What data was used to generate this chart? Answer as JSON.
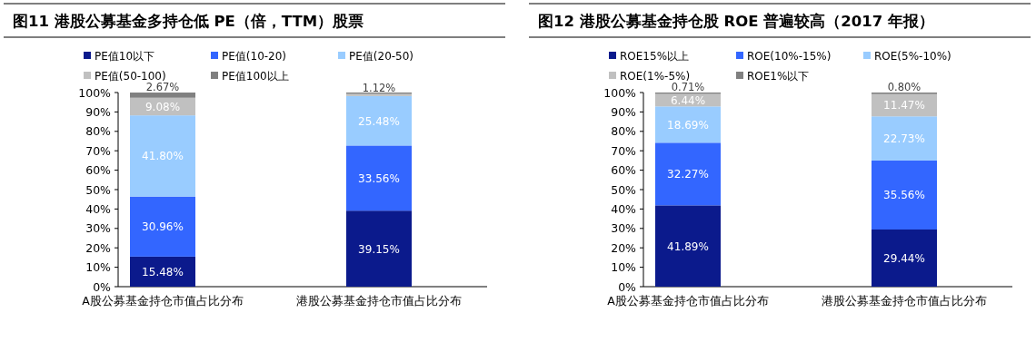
{
  "chart_data": [
    {
      "type": "bar",
      "stacked": true,
      "title": "图11 港股公募基金多持仓低 PE（倍，TTM）股票",
      "categories": [
        "A股公募基金持仓市值占比分布",
        "港股公募基金持仓市值占比分布"
      ],
      "ylim": [
        0,
        100
      ],
      "yticks": [
        {
          "value": 0,
          "label": "0%"
        },
        {
          "value": 10,
          "label": "10%"
        },
        {
          "value": 20,
          "label": "20%"
        },
        {
          "value": 30,
          "label": "30%"
        },
        {
          "value": 40,
          "label": "40%"
        },
        {
          "value": 50,
          "label": "50%"
        },
        {
          "value": 60,
          "label": "60%"
        },
        {
          "value": 70,
          "label": "70%"
        },
        {
          "value": 80,
          "label": "80%"
        },
        {
          "value": 90,
          "label": "90%"
        },
        {
          "value": 100,
          "label": "100%"
        }
      ],
      "legend": "top",
      "series": [
        {
          "name": "PE值10以下",
          "color": "#0b1a8c",
          "values": [
            15.48,
            39.15
          ],
          "value_labels": [
            "15.48%",
            "39.15%"
          ]
        },
        {
          "name": "PE值(10-20)",
          "color": "#3366ff",
          "values": [
            30.96,
            33.56
          ],
          "value_labels": [
            "30.96%",
            "33.56%"
          ]
        },
        {
          "name": "PE值(20-50)",
          "color": "#99ccff",
          "values": [
            41.8,
            25.48
          ],
          "value_labels": [
            "41.80%",
            "25.48%"
          ]
        },
        {
          "name": "PE值(50-100)",
          "color": "#c0c0c0",
          "values": [
            9.08,
            1.12
          ],
          "value_labels": [
            "9.08%",
            "1.12%"
          ]
        },
        {
          "name": "PE值100以上",
          "color": "#808080",
          "values": [
            2.67,
            0.7
          ],
          "value_labels": [
            "2.67%",
            null
          ]
        }
      ]
    },
    {
      "type": "bar",
      "stacked": true,
      "title": "图12 港股公募基金持仓股 ROE 普遍较高（2017 年报）",
      "categories": [
        "A股公募基金持仓市值占比分布",
        "港股公募基金持仓市值占比分布"
      ],
      "ylim": [
        0,
        100
      ],
      "yticks": [
        {
          "value": 0,
          "label": "0%"
        },
        {
          "value": 10,
          "label": "10%"
        },
        {
          "value": 20,
          "label": "20%"
        },
        {
          "value": 30,
          "label": "30%"
        },
        {
          "value": 40,
          "label": "40%"
        },
        {
          "value": 50,
          "label": "50%"
        },
        {
          "value": 60,
          "label": "60%"
        },
        {
          "value": 70,
          "label": "70%"
        },
        {
          "value": 80,
          "label": "80%"
        },
        {
          "value": 90,
          "label": "90%"
        },
        {
          "value": 100,
          "label": "100%"
        }
      ],
      "legend": "top",
      "series": [
        {
          "name": "ROE15%以上",
          "color": "#0b1a8c",
          "values": [
            41.89,
            29.44
          ],
          "value_labels": [
            "41.89%",
            "29.44%"
          ]
        },
        {
          "name": "ROE(10%-15%)",
          "color": "#3366ff",
          "values": [
            32.27,
            35.56
          ],
          "value_labels": [
            "32.27%",
            "35.56%"
          ]
        },
        {
          "name": "ROE(5%-10%)",
          "color": "#99ccff",
          "values": [
            18.69,
            22.73
          ],
          "value_labels": [
            "18.69%",
            "22.73%"
          ]
        },
        {
          "name": "ROE(1%-5%)",
          "color": "#c0c0c0",
          "values": [
            6.44,
            11.47
          ],
          "value_labels": [
            "6.44%",
            "11.47%"
          ]
        },
        {
          "name": "ROE1%以下",
          "color": "#808080",
          "values": [
            0.71,
            0.8
          ],
          "value_labels": [
            "0.71%",
            "0.80%"
          ]
        }
      ]
    }
  ]
}
